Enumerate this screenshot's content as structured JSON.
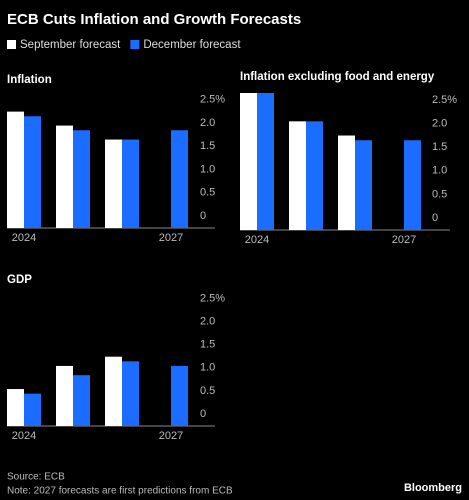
{
  "title": "ECB Cuts Inflation and Growth Forecasts",
  "source": "Source: ECB",
  "note": "Note: 2027 forecasts are first predictions from ECB",
  "brand": "Bloomberg",
  "chart_data": [
    {
      "type": "bar",
      "title": "Inflation",
      "categories": [
        "2024",
        null,
        null,
        "2027"
      ],
      "series": [
        {
          "name": "September forecast",
          "color": "#ffffff",
          "values": [
            2.5,
            2.2,
            1.9,
            null
          ]
        },
        {
          "name": "December forecast",
          "color": "#1a6dff",
          "values": [
            2.4,
            2.1,
            1.9,
            2.1
          ]
        }
      ],
      "ylim": [
        0,
        2.9
      ],
      "yticks": [
        0,
        0.5,
        {
          "value": 1,
          "label": "1.0"
        },
        {
          "value": 1.5,
          "label": "1.5"
        },
        {
          "value": 2,
          "label": "2.0"
        },
        {
          "value": 2.5,
          "label": "2.5%"
        }
      ],
      "grid": false
    },
    {
      "type": "bar",
      "title": "Inflation excluding food and energy",
      "categories": [
        "2024",
        null,
        null,
        "2027"
      ],
      "series": [
        {
          "name": "September forecast",
          "color": "#ffffff",
          "values": [
            2.9,
            2.3,
            2.0,
            null
          ]
        },
        {
          "name": "December forecast",
          "color": "#1a6dff",
          "values": [
            2.9,
            2.3,
            1.9,
            1.9
          ]
        }
      ],
      "ylim": [
        0,
        2.9
      ],
      "yticks": [
        0,
        0.5,
        {
          "value": 1,
          "label": "1.0"
        },
        {
          "value": 1.5,
          "label": "1.5"
        },
        {
          "value": 2,
          "label": "2.0"
        },
        {
          "value": 2.5,
          "label": "2.5%"
        }
      ],
      "grid": false
    },
    {
      "type": "bar",
      "title": "GDP",
      "categories": [
        "2024",
        null,
        null,
        "2027"
      ],
      "series": [
        {
          "name": "September forecast",
          "color": "#ffffff",
          "values": [
            0.8,
            1.3,
            1.5,
            null
          ]
        },
        {
          "name": "December forecast",
          "color": "#1a6dff",
          "values": [
            0.7,
            1.1,
            1.4,
            1.3
          ]
        }
      ],
      "ylim": [
        0,
        2.9
      ],
      "yticks": [
        0,
        0.5,
        {
          "value": 1,
          "label": "1.0"
        },
        {
          "value": 1.5,
          "label": "1.5"
        },
        {
          "value": 2,
          "label": "2.0"
        },
        {
          "value": 2.5,
          "label": "2.5%"
        }
      ],
      "grid": false
    }
  ]
}
